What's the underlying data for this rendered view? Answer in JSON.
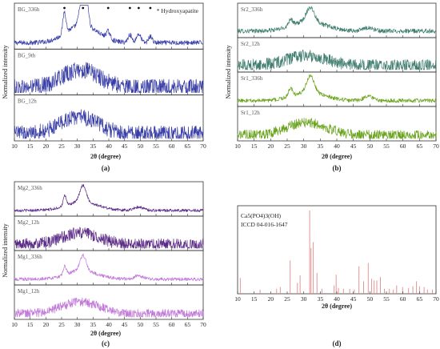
{
  "chart_data": [
    {
      "panel": "(a)",
      "type": "line",
      "xlabel": "2θ (degree)",
      "ylabel": "Normalized intensity",
      "xlim": [
        10,
        70
      ],
      "xticks": [
        10,
        15,
        20,
        25,
        30,
        35,
        40,
        45,
        50,
        55,
        60,
        65,
        70
      ],
      "legend": "* Hydroxyapatite",
      "peak_marker_positions": [
        25.9,
        31.8,
        39.8,
        46.7,
        49.5,
        53.2
      ],
      "series": [
        {
          "name": "BG_336h",
          "color": "#3a3fa8",
          "baseline": 0.1,
          "noise": 0.06,
          "broad": [
            {
              "c": 31.5,
              "w": 5,
              "a": 0.45
            }
          ],
          "peaks": [
            {
              "c": 25.9,
              "w": 0.5,
              "a": 0.55
            },
            {
              "c": 31.8,
              "w": 0.9,
              "a": 0.95
            },
            {
              "c": 32.9,
              "w": 0.6,
              "a": 0.5
            },
            {
              "c": 39.8,
              "w": 0.6,
              "a": 0.18
            },
            {
              "c": 46.7,
              "w": 0.6,
              "a": 0.2
            },
            {
              "c": 49.5,
              "w": 0.7,
              "a": 0.22
            },
            {
              "c": 53.2,
              "w": 0.6,
              "a": 0.16
            }
          ]
        },
        {
          "name": "BG_9th",
          "color": "#3a3fa8",
          "baseline": 0.12,
          "noise": 0.22,
          "broad": [
            {
              "c": 31,
              "w": 6,
              "a": 0.45
            }
          ],
          "peaks": []
        },
        {
          "name": "BG_12h",
          "color": "#3a3fa8",
          "baseline": 0.12,
          "noise": 0.2,
          "broad": [
            {
              "c": 30.5,
              "w": 6,
              "a": 0.42
            }
          ],
          "peaks": []
        }
      ]
    },
    {
      "panel": "(b)",
      "type": "line",
      "xlabel": "2θ (degree)",
      "ylabel": "Normalized intensity",
      "xlim": [
        10,
        70
      ],
      "xticks": [
        10,
        15,
        20,
        25,
        30,
        35,
        40,
        45,
        50,
        55,
        60,
        65,
        70
      ],
      "series": [
        {
          "name": "Sr2_336h",
          "color": "#3f7d6e",
          "baseline": 0.15,
          "noise": 0.08,
          "broad": [
            {
              "c": 31.5,
              "w": 5,
              "a": 0.35
            }
          ],
          "peaks": [
            {
              "c": 26,
              "w": 0.6,
              "a": 0.25
            },
            {
              "c": 32,
              "w": 1.2,
              "a": 0.5
            },
            {
              "c": 49.5,
              "w": 1.5,
              "a": 0.12
            }
          ]
        },
        {
          "name": "Sr2_12h",
          "color": "#3f7d6e",
          "baseline": 0.15,
          "noise": 0.22,
          "broad": [
            {
              "c": 31,
              "w": 6,
              "a": 0.35
            }
          ],
          "peaks": []
        },
        {
          "name": "Sr1_336h",
          "color": "#6aa31c",
          "baseline": 0.12,
          "noise": 0.07,
          "broad": [
            {
              "c": 31.5,
              "w": 5,
              "a": 0.3
            }
          ],
          "peaks": [
            {
              "c": 26,
              "w": 0.6,
              "a": 0.3
            },
            {
              "c": 32,
              "w": 1.1,
              "a": 0.6
            },
            {
              "c": 49.5,
              "w": 1.5,
              "a": 0.15
            }
          ]
        },
        {
          "name": "Sr1_12h",
          "color": "#6aa31c",
          "baseline": 0.12,
          "noise": 0.18,
          "broad": [
            {
              "c": 31,
              "w": 6,
              "a": 0.45
            }
          ],
          "peaks": []
        }
      ]
    },
    {
      "panel": "(c)",
      "type": "line",
      "xlabel": "2θ (degree)",
      "ylabel": "Normalized intensity",
      "xlim": [
        10,
        70
      ],
      "xticks": [
        10,
        15,
        20,
        25,
        30,
        35,
        40,
        45,
        50,
        55,
        60,
        65,
        70
      ],
      "series": [
        {
          "name": "Mg2_336h",
          "color": "#5b2a86",
          "baseline": 0.12,
          "noise": 0.05,
          "broad": [
            {
              "c": 31.5,
              "w": 5,
              "a": 0.3
            }
          ],
          "peaks": [
            {
              "c": 26,
              "w": 0.5,
              "a": 0.35
            },
            {
              "c": 31.8,
              "w": 1.0,
              "a": 0.6
            },
            {
              "c": 49.5,
              "w": 1.5,
              "a": 0.12
            }
          ]
        },
        {
          "name": "Mg2_12h",
          "color": "#5b2a86",
          "baseline": 0.12,
          "noise": 0.22,
          "broad": [
            {
              "c": 31,
              "w": 6,
              "a": 0.42
            }
          ],
          "peaks": []
        },
        {
          "name": "Mg1_336h",
          "color": "#c27ad8",
          "baseline": 0.12,
          "noise": 0.06,
          "broad": [
            {
              "c": 31.5,
              "w": 5,
              "a": 0.3
            }
          ],
          "peaks": [
            {
              "c": 26,
              "w": 0.5,
              "a": 0.3
            },
            {
              "c": 31.8,
              "w": 1.0,
              "a": 0.55
            },
            {
              "c": 49.5,
              "w": 1.5,
              "a": 0.12
            }
          ]
        },
        {
          "name": "Mg1_12h",
          "color": "#c27ad8",
          "baseline": 0.12,
          "noise": 0.16,
          "broad": [
            {
              "c": 31,
              "w": 6,
              "a": 0.42
            }
          ],
          "peaks": []
        }
      ]
    },
    {
      "panel": "(d)",
      "type": "bar",
      "title_line1": "Ca5(PO4)3(OH)",
      "title_line2": "ICCD 04-016-1647",
      "xlabel": "2θ (degree)",
      "xlim": [
        10,
        70
      ],
      "xticks": [
        10,
        15,
        20,
        25,
        30,
        35,
        40,
        45,
        50,
        55,
        60,
        65,
        70
      ],
      "color": "#e08a8a",
      "x": [
        10.8,
        16.8,
        21.8,
        22.9,
        25.9,
        28.1,
        28.9,
        31.8,
        32.2,
        32.9,
        34.0,
        35.5,
        39.2,
        39.8,
        40.5,
        42.0,
        43.9,
        45.3,
        46.7,
        48.1,
        49.5,
        50.5,
        51.3,
        52.1,
        53.2,
        54.4,
        55.9,
        57.1,
        58.1,
        59.9,
        61.7,
        63.0,
        64.1,
        65.0,
        66.4,
        67.4,
        68.9
      ],
      "values": [
        19,
        5,
        6,
        8,
        40,
        13,
        22,
        100,
        55,
        62,
        25,
        6,
        10,
        23,
        7,
        6,
        6,
        5,
        33,
        15,
        37,
        18,
        16,
        16,
        20,
        6,
        6,
        5,
        10,
        8,
        7,
        9,
        15,
        9,
        8,
        5,
        5
      ]
    }
  ]
}
